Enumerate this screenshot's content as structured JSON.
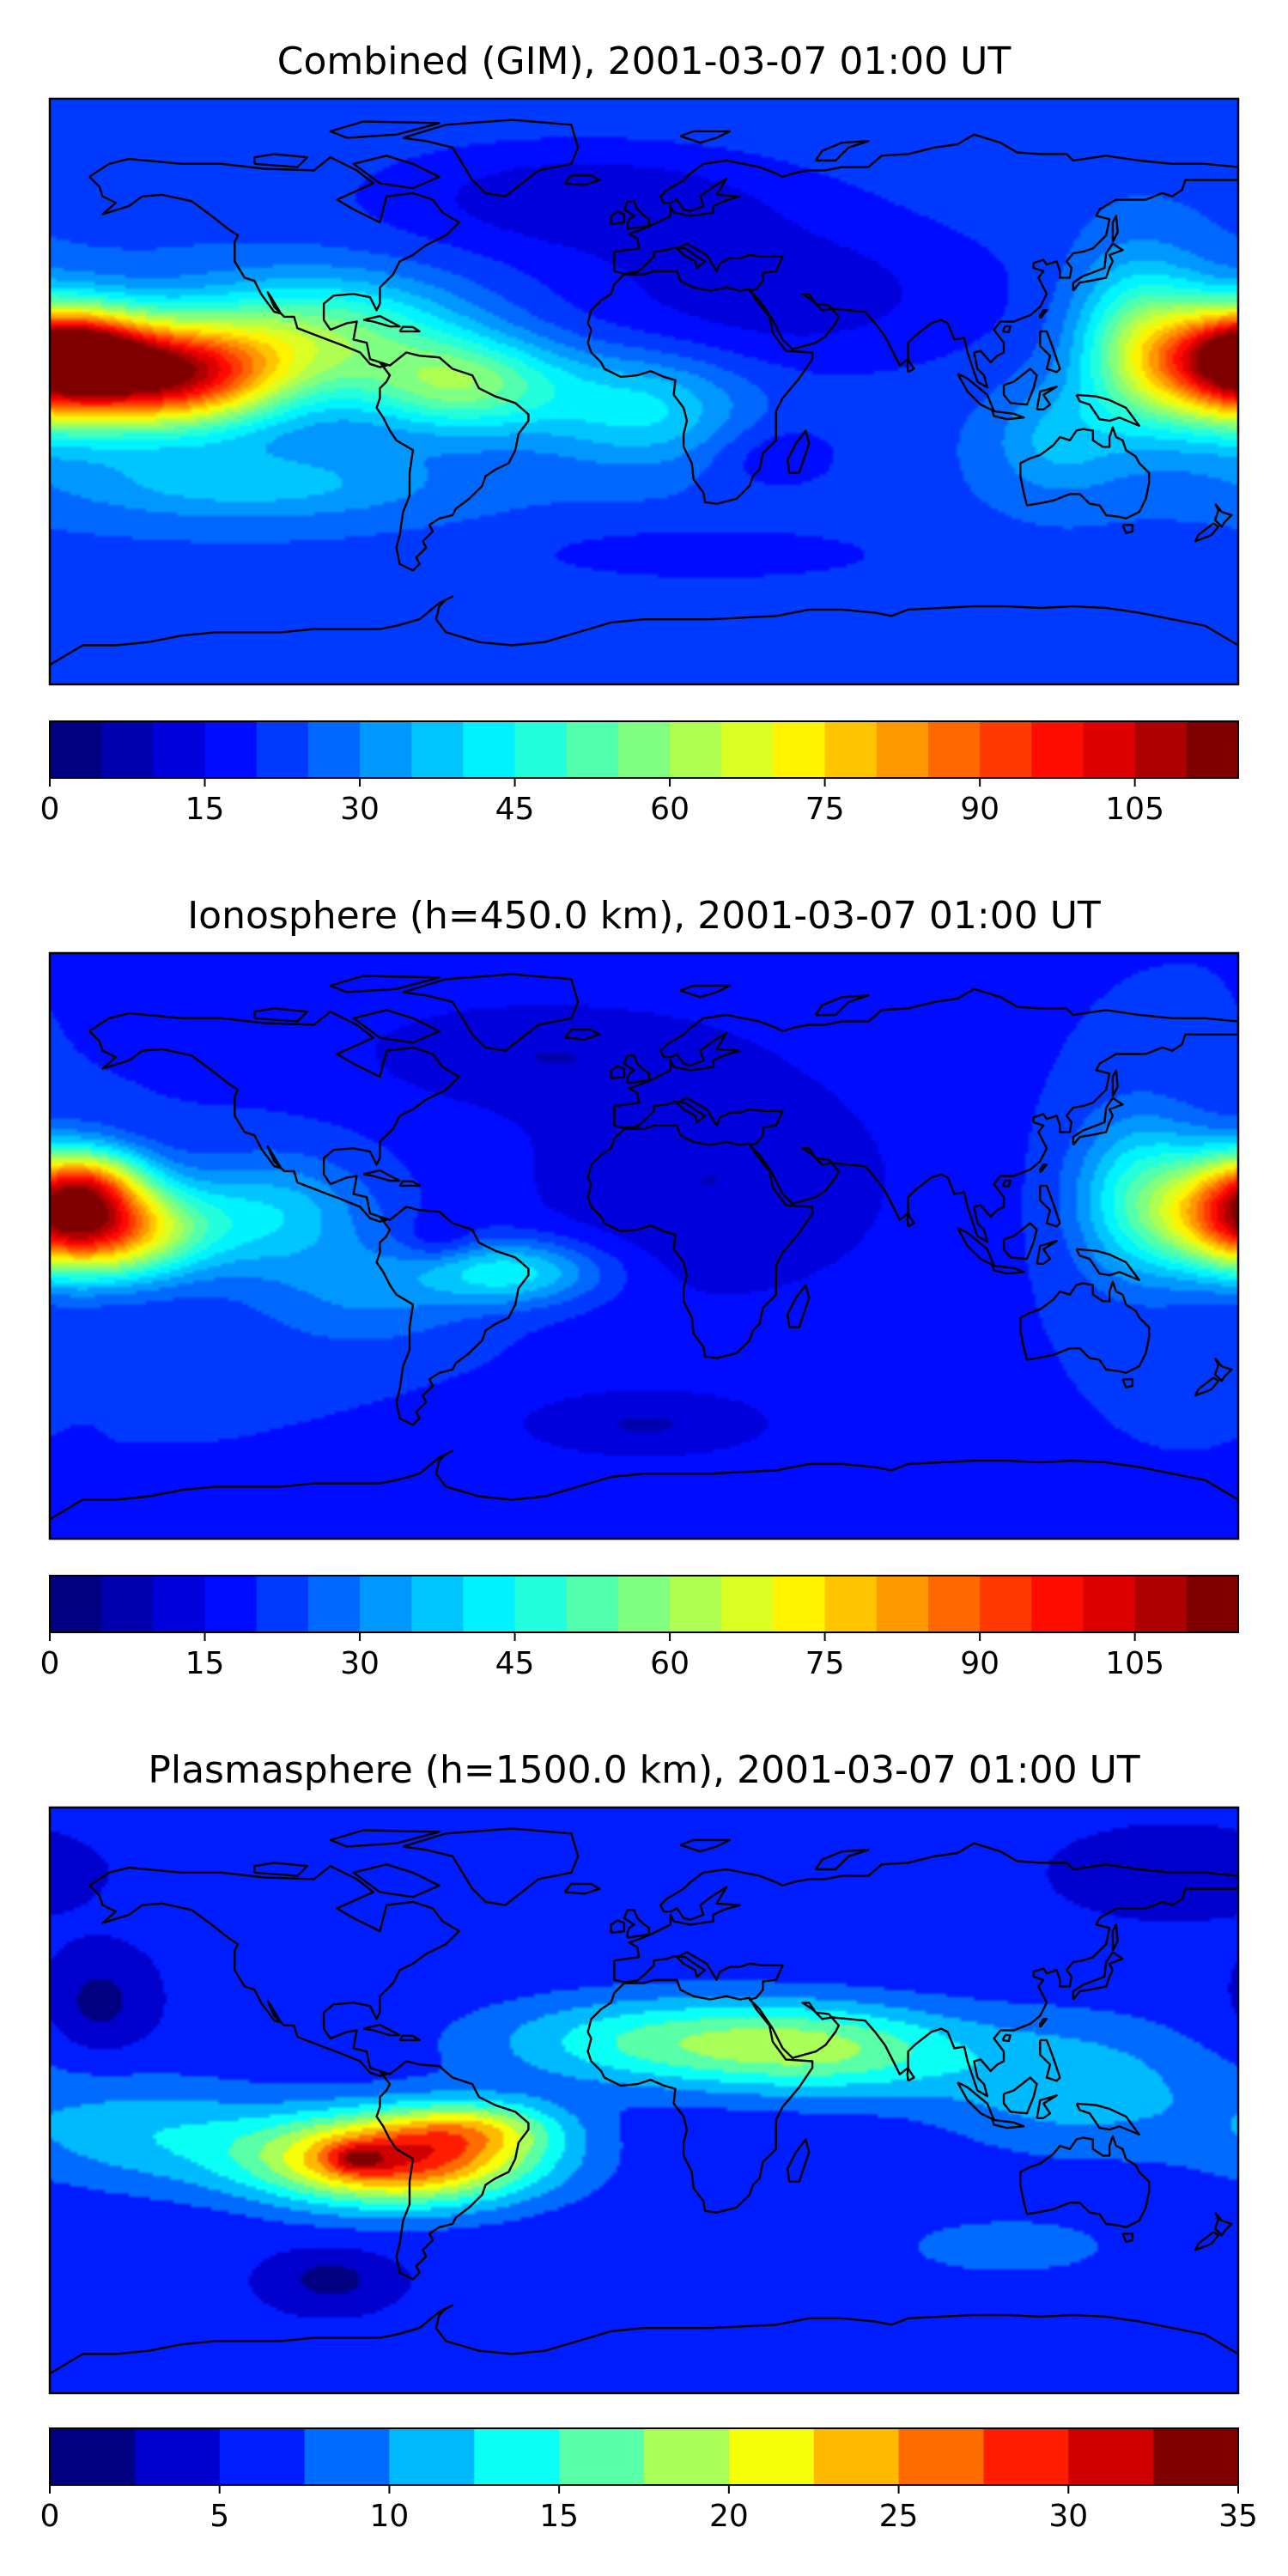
{
  "panels": [
    {
      "title": "Combined (GIM), 2001-03-07 01:00 UT",
      "colorbar": {
        "vmin": 0,
        "vmax": 115,
        "levels": 23,
        "ticks": [
          0,
          15,
          30,
          45,
          60,
          75,
          90,
          105
        ],
        "tick_labels": [
          "0",
          "15",
          "30",
          "45",
          "60",
          "75",
          "90",
          "105"
        ]
      },
      "field": {
        "base": 24,
        "blobs": [
          {
            "lon": -145,
            "lat": 5,
            "amp": 80,
            "slon": 25,
            "slat": 11
          },
          {
            "lon": -172,
            "lat": 14,
            "amp": 35,
            "slon": 15,
            "slat": 8
          },
          {
            "lon": 178,
            "lat": 8,
            "amp": 60,
            "slon": 18,
            "slat": 13
          },
          {
            "lon": 150,
            "lat": 15,
            "amp": 30,
            "slon": 14,
            "slat": 18
          },
          {
            "lon": -98,
            "lat": 18,
            "amp": 30,
            "slon": 30,
            "slat": 12
          },
          {
            "lon": -55,
            "lat": 2,
            "amp": 32,
            "slon": 22,
            "slat": 10
          },
          {
            "lon": 0,
            "lat": -5,
            "amp": 18,
            "slon": 22,
            "slat": 12
          },
          {
            "lon": 125,
            "lat": -15,
            "amp": 12,
            "slon": 14,
            "slat": 12
          },
          {
            "lon": -120,
            "lat": -28,
            "amp": 14,
            "slon": 40,
            "slat": 8
          },
          {
            "lon": 40,
            "lat": 30,
            "amp": -12,
            "slon": 50,
            "slat": 18
          },
          {
            "lon": -20,
            "lat": 60,
            "amp": -12,
            "slon": 45,
            "slat": 12
          },
          {
            "lon": 40,
            "lat": -20,
            "amp": -8,
            "slon": 15,
            "slat": 8
          },
          {
            "lon": 20,
            "lat": -50,
            "amp": -8,
            "slon": 40,
            "slat": 6
          }
        ]
      }
    },
    {
      "title": "Ionosphere  (h=450.0 km), 2001-03-07 01:00 UT",
      "colorbar": {
        "vmin": 0,
        "vmax": 115,
        "levels": 23,
        "ticks": [
          0,
          15,
          30,
          45,
          60,
          75,
          90,
          105
        ],
        "tick_labels": [
          "0",
          "15",
          "30",
          "45",
          "60",
          "75",
          "90",
          "105"
        ]
      },
      "field": {
        "base": 20,
        "blobs": [
          {
            "lon": -162,
            "lat": 5,
            "amp": 58,
            "slon": 20,
            "slat": 10
          },
          {
            "lon": -168,
            "lat": 20,
            "amp": 30,
            "slon": 12,
            "slat": 7
          },
          {
            "lon": 180,
            "lat": 12,
            "amp": 52,
            "slon": 16,
            "slat": 12
          },
          {
            "lon": 150,
            "lat": 15,
            "amp": 25,
            "slon": 14,
            "slat": 18
          },
          {
            "lon": -112,
            "lat": 10,
            "amp": 18,
            "slon": 20,
            "slat": 12
          },
          {
            "lon": -40,
            "lat": -8,
            "amp": 24,
            "slon": 20,
            "slat": 7
          },
          {
            "lon": -62,
            "lat": 2,
            "amp": -8,
            "slon": 8,
            "slat": 5
          },
          {
            "lon": -85,
            "lat": -15,
            "amp": 10,
            "slon": 25,
            "slat": 12
          },
          {
            "lon": 20,
            "lat": 20,
            "amp": -10,
            "slon": 45,
            "slat": 30
          },
          {
            "lon": 0,
            "lat": -55,
            "amp": -10,
            "slon": 30,
            "slat": 8
          },
          {
            "lon": -40,
            "lat": 60,
            "amp": -8,
            "slon": 40,
            "slat": 12
          }
        ]
      }
    },
    {
      "title": "Plasmasphere (h=1500.0 km), 2001-03-07 01:00 UT",
      "colorbar": {
        "vmin": 0,
        "vmax": 35,
        "levels": 14,
        "ticks": [
          0,
          5,
          10,
          15,
          20,
          25,
          30,
          35
        ],
        "tick_labels": [
          "0",
          "5",
          "10",
          "15",
          "20",
          "25",
          "30",
          "35"
        ]
      },
      "field": {
        "base": 5.5,
        "blobs": [
          {
            "lon": -75,
            "lat": -18,
            "amp": 24,
            "slon": 30,
            "slat": 10
          },
          {
            "lon": -87,
            "lat": -18,
            "amp": 6,
            "slon": 6,
            "slat": 3
          },
          {
            "lon": -50,
            "lat": -8,
            "amp": 8,
            "slon": 18,
            "slat": 6
          },
          {
            "lon": 10,
            "lat": 18,
            "amp": 10,
            "slon": 40,
            "slat": 10
          },
          {
            "lon": 60,
            "lat": 15,
            "amp": 8,
            "slon": 30,
            "slat": 10
          },
          {
            "lon": 130,
            "lat": 5,
            "amp": 6,
            "slon": 30,
            "slat": 15
          },
          {
            "lon": -150,
            "lat": -10,
            "amp": 6,
            "slon": 30,
            "slat": 12
          },
          {
            "lon": -95,
            "lat": -55,
            "amp": -4,
            "slon": 12,
            "slat": 6
          },
          {
            "lon": -165,
            "lat": 30,
            "amp": -4,
            "slon": 10,
            "slat": 10
          },
          {
            "lon": 160,
            "lat": 70,
            "amp": -3,
            "slon": 20,
            "slat": 8
          },
          {
            "lon": 110,
            "lat": -45,
            "amp": 3,
            "slon": 30,
            "slat": 8
          }
        ]
      }
    }
  ]
}
